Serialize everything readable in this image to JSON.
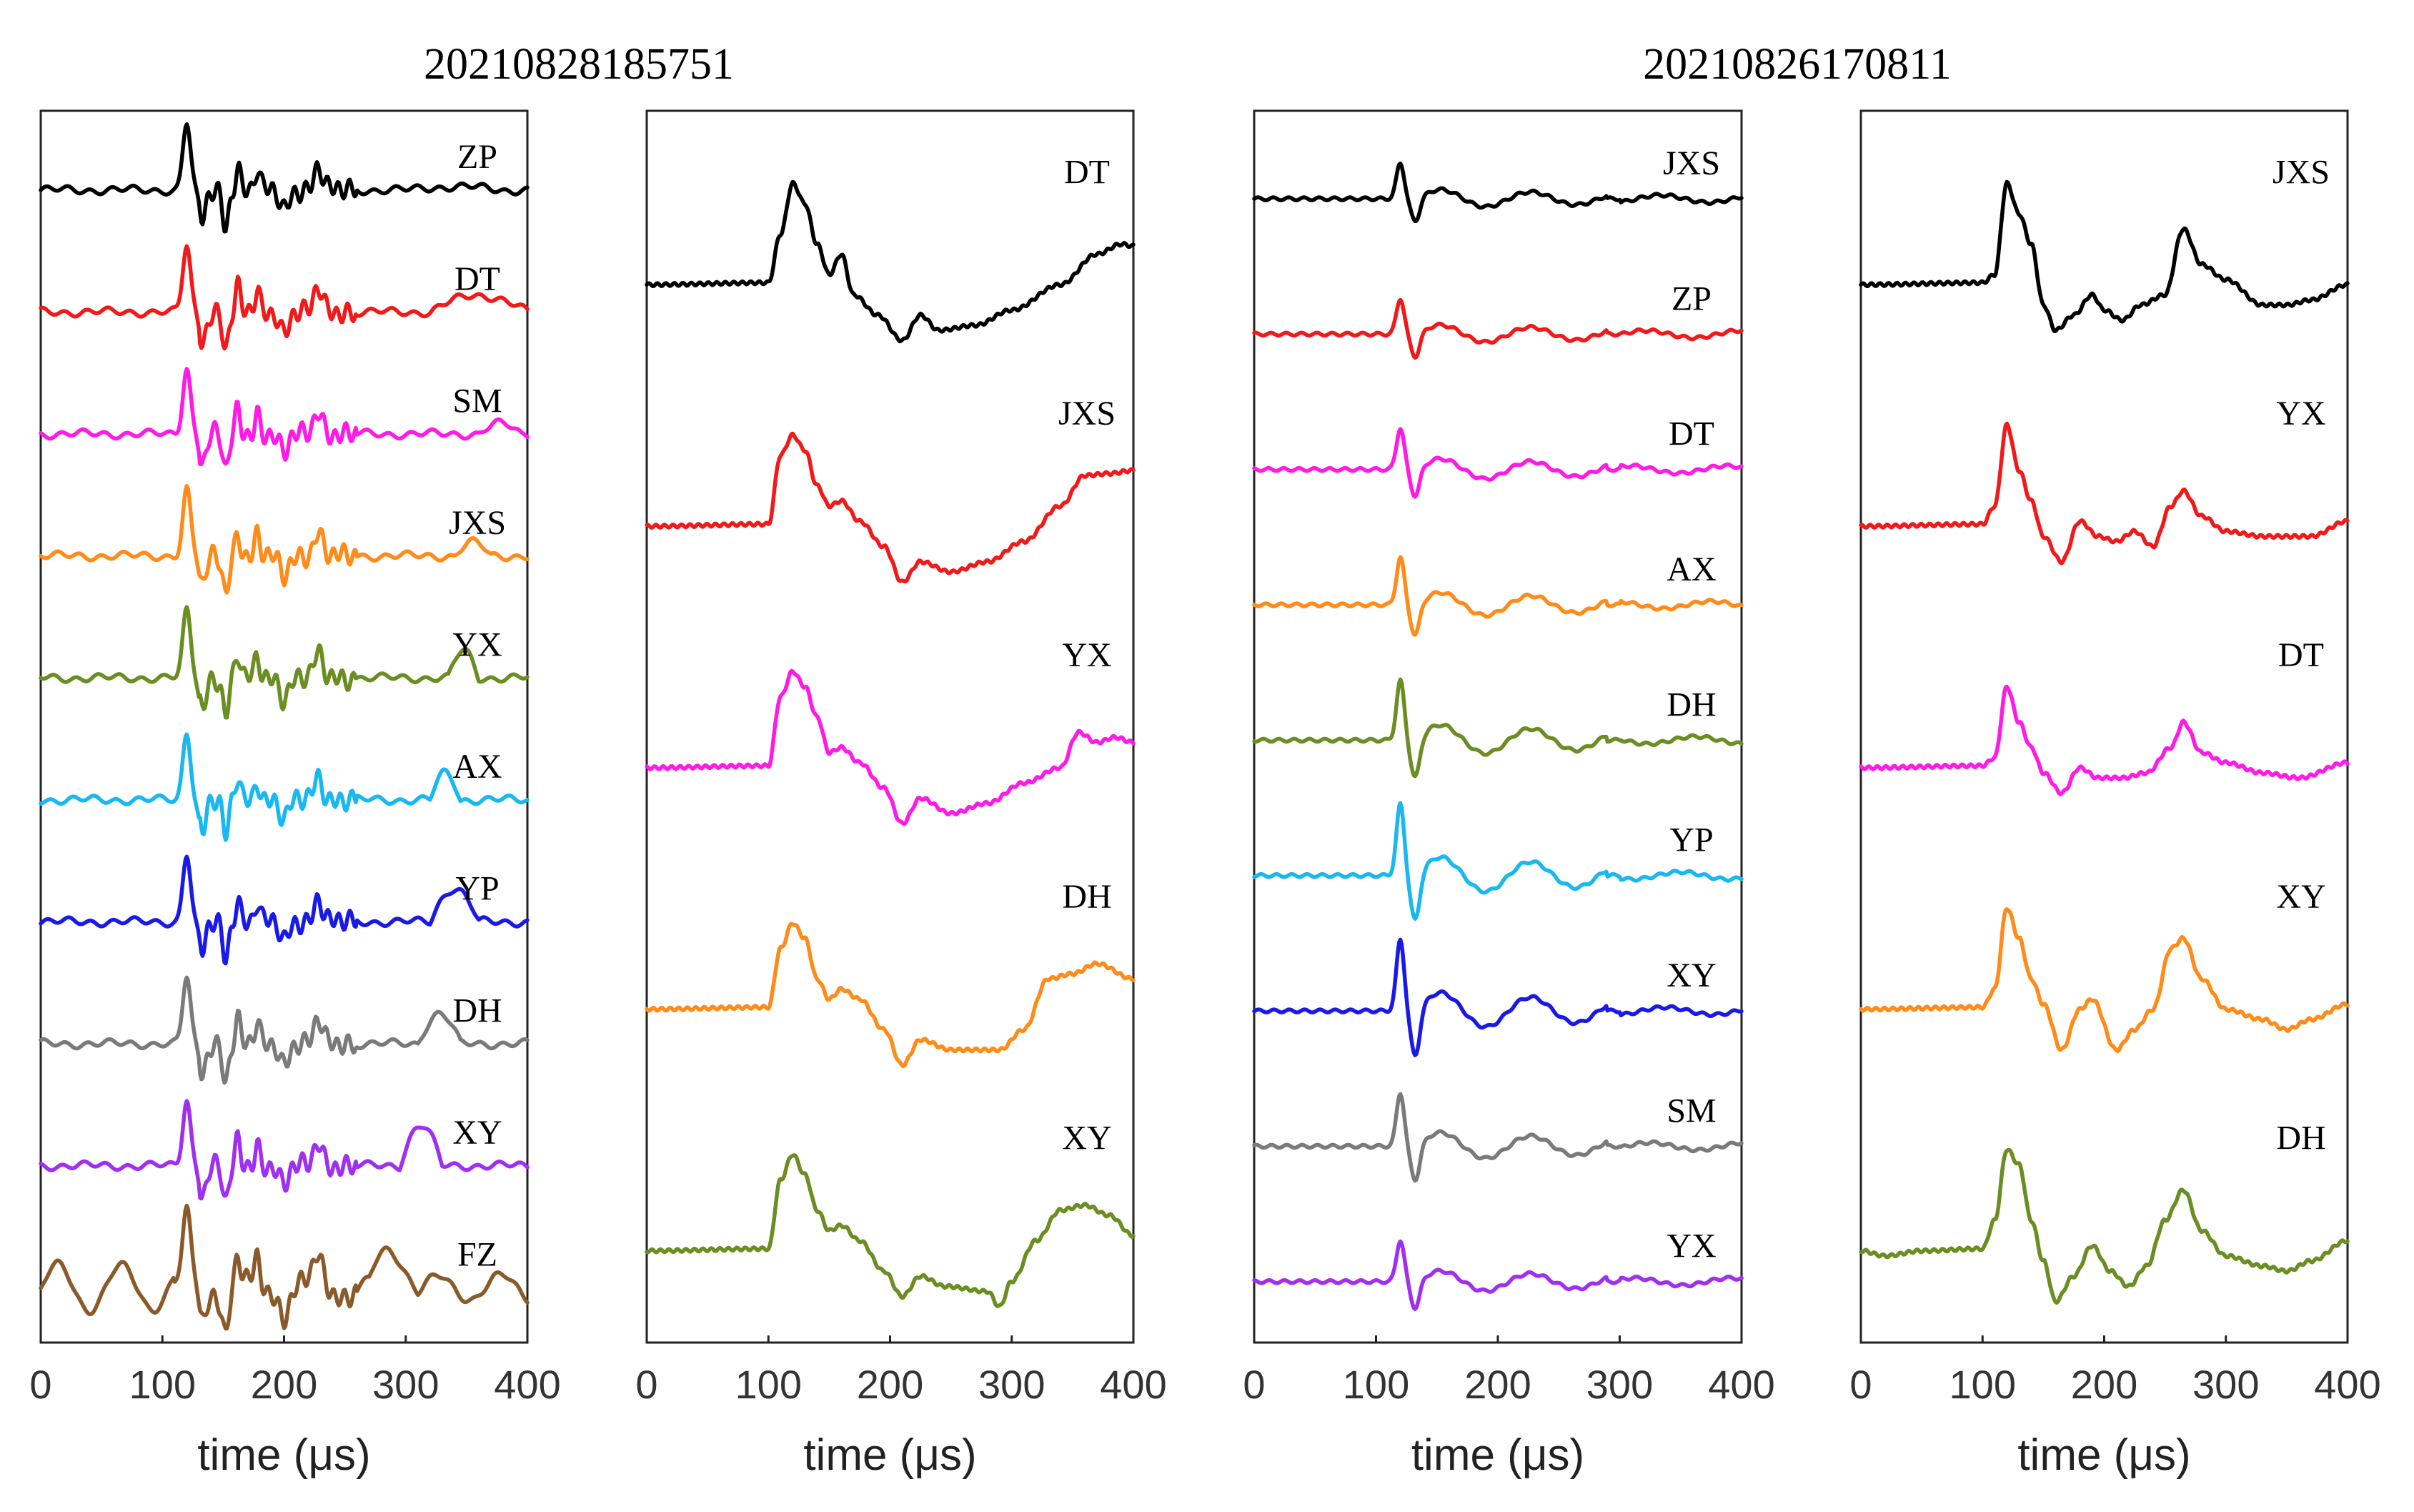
{
  "figure": {
    "group_titles": [
      "20210828185751",
      "20210826170811"
    ],
    "colors": {
      "black": "#000000",
      "red": "#f01a1a",
      "magenta": "#ff1ae6",
      "orange": "#ff8c1a",
      "olive": "#6b8e23",
      "cyan": "#1ab8f0",
      "blue": "#1a1ae6",
      "gray": "#7a7a7a",
      "purple": "#a030f0",
      "brown": "#8b5a2b"
    }
  },
  "chart_data": [
    {
      "type": "line",
      "group_title": "20210828185751",
      "xlabel": "time (μs)",
      "xlim": [
        0,
        400
      ],
      "xticks": [
        0,
        100,
        200,
        300,
        400
      ],
      "series": [
        {
          "name": "ZP",
          "color": "black",
          "kind": "noisy",
          "peak_amp": 1.0,
          "tail": [
            [
              300,
              380,
              0.05
            ]
          ]
        },
        {
          "name": "DT",
          "color": "red",
          "kind": "noisy",
          "peak_amp": 1.0,
          "tail": [
            [
              320,
              400,
              0.25
            ]
          ]
        },
        {
          "name": "SM",
          "color": "magenta",
          "kind": "noisy",
          "peak_amp": 1.0,
          "tail": [
            [
              360,
              395,
              0.15
            ]
          ]
        },
        {
          "name": "JXS",
          "color": "orange",
          "kind": "noisy",
          "peak_amp": 1.0,
          "tail": [
            [
              340,
              370,
              0.2
            ]
          ]
        },
        {
          "name": "YX",
          "color": "olive",
          "kind": "noisy",
          "peak_amp": 1.0,
          "tail": [
            [
              335,
              360,
              0.4
            ]
          ]
        },
        {
          "name": "AX",
          "color": "cyan",
          "kind": "noisy",
          "peak_amp": 1.0,
          "tail": [
            [
              320,
              345,
              0.4
            ]
          ]
        },
        {
          "name": "YP",
          "color": "blue",
          "kind": "noisy",
          "peak_amp": 1.0,
          "tail": [
            [
              320,
              360,
              0.5
            ]
          ]
        },
        {
          "name": "DH",
          "color": "gray",
          "kind": "noisy",
          "peak_amp": 1.0,
          "tail": [
            [
              310,
              345,
              0.45
            ]
          ]
        },
        {
          "name": "XY",
          "color": "purple",
          "kind": "noisy",
          "peak_amp": 1.0,
          "tail": [
            [
              295,
              330,
              0.6
            ]
          ]
        },
        {
          "name": "FZ",
          "color": "brown",
          "kind": "noisy",
          "peak_amp": 1.0,
          "tail": [
            [
              270,
              310,
              0.55
            ]
          ]
        }
      ]
    },
    {
      "type": "line",
      "group_title": "",
      "xlabel": "time (μs)",
      "xlim": [
        0,
        400
      ],
      "xticks": [
        0,
        100,
        200,
        300,
        400
      ],
      "series": [
        {
          "name": "DT",
          "color": "black",
          "kind": "envelope",
          "points": [
            [
              0,
              0
            ],
            [
              100,
              0.02
            ],
            [
              110,
              0.5
            ],
            [
              120,
              1.0
            ],
            [
              130,
              0.8
            ],
            [
              140,
              0.4
            ],
            [
              150,
              0.1
            ],
            [
              160,
              0.3
            ],
            [
              170,
              -0.1
            ],
            [
              190,
              -0.3
            ],
            [
              210,
              -0.55
            ],
            [
              225,
              -0.3
            ],
            [
              240,
              -0.45
            ],
            [
              270,
              -0.4
            ],
            [
              300,
              -0.25
            ],
            [
              340,
              0.0
            ],
            [
              370,
              0.3
            ],
            [
              390,
              0.4
            ],
            [
              400,
              0.38
            ]
          ]
        },
        {
          "name": "JXS",
          "color": "red",
          "kind": "envelope",
          "points": [
            [
              0,
              0
            ],
            [
              100,
              0.02
            ],
            [
              110,
              0.7
            ],
            [
              120,
              0.9
            ],
            [
              130,
              0.75
            ],
            [
              140,
              0.4
            ],
            [
              150,
              0.2
            ],
            [
              160,
              0.25
            ],
            [
              175,
              0.05
            ],
            [
              195,
              -0.2
            ],
            [
              210,
              -0.55
            ],
            [
              225,
              -0.35
            ],
            [
              250,
              -0.45
            ],
            [
              280,
              -0.35
            ],
            [
              310,
              -0.15
            ],
            [
              340,
              0.2
            ],
            [
              360,
              0.5
            ],
            [
              380,
              0.52
            ],
            [
              400,
              0.55
            ]
          ]
        },
        {
          "name": "YX",
          "color": "magenta",
          "kind": "envelope",
          "points": [
            [
              0,
              0
            ],
            [
              100,
              0.02
            ],
            [
              110,
              0.7
            ],
            [
              120,
              0.95
            ],
            [
              130,
              0.8
            ],
            [
              140,
              0.5
            ],
            [
              150,
              0.15
            ],
            [
              160,
              0.2
            ],
            [
              175,
              0.05
            ],
            [
              195,
              -0.2
            ],
            [
              210,
              -0.55
            ],
            [
              225,
              -0.3
            ],
            [
              250,
              -0.45
            ],
            [
              280,
              -0.35
            ],
            [
              310,
              -0.15
            ],
            [
              340,
              0.0
            ],
            [
              355,
              0.35
            ],
            [
              370,
              0.25
            ],
            [
              385,
              0.3
            ],
            [
              400,
              0.25
            ]
          ]
        },
        {
          "name": "DH",
          "color": "orange",
          "kind": "envelope",
          "points": [
            [
              0,
              0
            ],
            [
              100,
              0.02
            ],
            [
              110,
              0.6
            ],
            [
              120,
              0.85
            ],
            [
              130,
              0.7
            ],
            [
              140,
              0.3
            ],
            [
              150,
              0.1
            ],
            [
              160,
              0.2
            ],
            [
              175,
              0.1
            ],
            [
              195,
              -0.2
            ],
            [
              210,
              -0.55
            ],
            [
              225,
              -0.3
            ],
            [
              250,
              -0.4
            ],
            [
              290,
              -0.4
            ],
            [
              310,
              -0.2
            ],
            [
              330,
              0.3
            ],
            [
              350,
              0.35
            ],
            [
              370,
              0.45
            ],
            [
              400,
              0.3
            ]
          ]
        },
        {
          "name": "XY",
          "color": "olive",
          "kind": "envelope",
          "points": [
            [
              0,
              0
            ],
            [
              100,
              0.02
            ],
            [
              110,
              0.7
            ],
            [
              120,
              0.95
            ],
            [
              130,
              0.75
            ],
            [
              140,
              0.4
            ],
            [
              150,
              0.2
            ],
            [
              160,
              0.25
            ],
            [
              175,
              0.1
            ],
            [
              195,
              -0.2
            ],
            [
              210,
              -0.45
            ],
            [
              225,
              -0.25
            ],
            [
              245,
              -0.35
            ],
            [
              280,
              -0.4
            ],
            [
              290,
              -0.55
            ],
            [
              300,
              -0.3
            ],
            [
              320,
              0.1
            ],
            [
              340,
              0.4
            ],
            [
              360,
              0.45
            ],
            [
              380,
              0.35
            ],
            [
              400,
              0.15
            ]
          ]
        }
      ]
    },
    {
      "type": "line",
      "group_title": "20210826170811",
      "xlabel": "time (μs)",
      "xlim": [
        0,
        400
      ],
      "xticks": [
        0,
        100,
        200,
        300,
        400
      ],
      "series": [
        {
          "name": "JXS",
          "color": "black",
          "kind": "wavy",
          "peak_amp": 0.6
        },
        {
          "name": "ZP",
          "color": "red",
          "kind": "wavy",
          "peak_amp": 0.6
        },
        {
          "name": "DT",
          "color": "magenta",
          "kind": "wavy",
          "peak_amp": 0.7
        },
        {
          "name": "AX",
          "color": "orange",
          "kind": "wavy",
          "peak_amp": 0.8
        },
        {
          "name": "DH",
          "color": "olive",
          "kind": "wavy",
          "peak_amp": 1.0
        },
        {
          "name": "YP",
          "color": "cyan",
          "kind": "wavy",
          "peak_amp": 1.2
        },
        {
          "name": "XY",
          "color": "blue",
          "kind": "wavy",
          "peak_amp": 1.2
        },
        {
          "name": "SM",
          "color": "gray",
          "kind": "wavy",
          "peak_amp": 0.9
        },
        {
          "name": "YX",
          "color": "purple",
          "kind": "wavy",
          "peak_amp": 0.7
        }
      ]
    },
    {
      "type": "line",
      "group_title": "",
      "xlabel": "time (μs)",
      "xlim": [
        0,
        400
      ],
      "xticks": [
        0,
        100,
        200,
        300,
        400
      ],
      "series": [
        {
          "name": "JXS",
          "color": "black",
          "kind": "envelope",
          "points": [
            [
              0,
              0
            ],
            [
              100,
              0.02
            ],
            [
              110,
              0.1
            ],
            [
              120,
              1.0
            ],
            [
              130,
              0.7
            ],
            [
              140,
              0.4
            ],
            [
              150,
              -0.2
            ],
            [
              160,
              -0.45
            ],
            [
              175,
              -0.3
            ],
            [
              190,
              -0.1
            ],
            [
              200,
              -0.25
            ],
            [
              215,
              -0.35
            ],
            [
              230,
              -0.2
            ],
            [
              250,
              -0.1
            ],
            [
              265,
              0.55
            ],
            [
              280,
              0.2
            ],
            [
              300,
              0.05
            ],
            [
              330,
              -0.2
            ],
            [
              350,
              -0.2
            ],
            [
              370,
              -0.15
            ],
            [
              400,
              0.0
            ]
          ]
        },
        {
          "name": "YX",
          "color": "red",
          "kind": "envelope",
          "points": [
            [
              0,
              0
            ],
            [
              100,
              0.02
            ],
            [
              110,
              0.2
            ],
            [
              120,
              1.0
            ],
            [
              130,
              0.55
            ],
            [
              140,
              0.25
            ],
            [
              150,
              -0.1
            ],
            [
              165,
              -0.35
            ],
            [
              180,
              0.05
            ],
            [
              195,
              -0.1
            ],
            [
              210,
              -0.15
            ],
            [
              225,
              -0.05
            ],
            [
              240,
              -0.2
            ],
            [
              255,
              0.2
            ],
            [
              265,
              0.35
            ],
            [
              280,
              0.1
            ],
            [
              300,
              -0.05
            ],
            [
              330,
              -0.1
            ],
            [
              370,
              -0.1
            ],
            [
              400,
              0.05
            ]
          ]
        },
        {
          "name": "DT",
          "color": "magenta",
          "kind": "envelope",
          "points": [
            [
              0,
              0
            ],
            [
              100,
              0.02
            ],
            [
              110,
              0.1
            ],
            [
              120,
              0.8
            ],
            [
              130,
              0.45
            ],
            [
              140,
              0.2
            ],
            [
              150,
              -0.05
            ],
            [
              165,
              -0.25
            ],
            [
              180,
              0.0
            ],
            [
              195,
              -0.1
            ],
            [
              215,
              -0.1
            ],
            [
              235,
              -0.05
            ],
            [
              255,
              0.2
            ],
            [
              265,
              0.45
            ],
            [
              280,
              0.15
            ],
            [
              300,
              0.05
            ],
            [
              330,
              -0.05
            ],
            [
              360,
              -0.1
            ],
            [
              400,
              0.05
            ]
          ]
        },
        {
          "name": "XY",
          "color": "orange",
          "kind": "envelope",
          "points": [
            [
              0,
              0
            ],
            [
              100,
              0.02
            ],
            [
              110,
              0.2
            ],
            [
              120,
              1.0
            ],
            [
              130,
              0.7
            ],
            [
              140,
              0.3
            ],
            [
              150,
              0.05
            ],
            [
              165,
              -0.4
            ],
            [
              180,
              0.0
            ],
            [
              190,
              0.1
            ],
            [
              210,
              -0.4
            ],
            [
              225,
              -0.2
            ],
            [
              240,
              0.0
            ],
            [
              255,
              0.6
            ],
            [
              265,
              0.7
            ],
            [
              280,
              0.3
            ],
            [
              300,
              0.0
            ],
            [
              330,
              -0.1
            ],
            [
              350,
              -0.2
            ],
            [
              370,
              -0.1
            ],
            [
              400,
              0.05
            ]
          ]
        },
        {
          "name": "DH",
          "color": "olive",
          "kind": "envelope",
          "points": [
            [
              0,
              0
            ],
            [
              20,
              -0.05
            ],
            [
              50,
              0.0
            ],
            [
              100,
              0.02
            ],
            [
              110,
              0.3
            ],
            [
              120,
              1.0
            ],
            [
              130,
              0.85
            ],
            [
              140,
              0.3
            ],
            [
              150,
              -0.1
            ],
            [
              160,
              -0.5
            ],
            [
              175,
              -0.25
            ],
            [
              190,
              0.05
            ],
            [
              205,
              -0.2
            ],
            [
              220,
              -0.35
            ],
            [
              235,
              -0.15
            ],
            [
              250,
              0.3
            ],
            [
              265,
              0.6
            ],
            [
              280,
              0.2
            ],
            [
              300,
              -0.05
            ],
            [
              330,
              -0.15
            ],
            [
              350,
              -0.2
            ],
            [
              370,
              -0.1
            ],
            [
              400,
              0.1
            ]
          ]
        }
      ]
    }
  ]
}
